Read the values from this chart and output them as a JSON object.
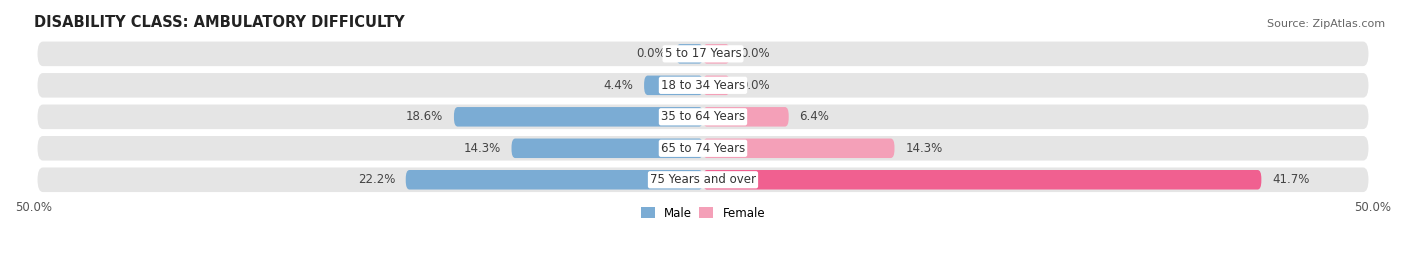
{
  "title": "DISABILITY CLASS: AMBULATORY DIFFICULTY",
  "source": "Source: ZipAtlas.com",
  "categories": [
    "5 to 17 Years",
    "18 to 34 Years",
    "35 to 64 Years",
    "65 to 74 Years",
    "75 Years and over"
  ],
  "male_values": [
    0.0,
    4.4,
    18.6,
    14.3,
    22.2
  ],
  "female_values": [
    0.0,
    0.0,
    6.4,
    14.3,
    41.7
  ],
  "male_color": "#7bacd4",
  "female_color": "#f4a0b8",
  "female_color_75": "#f06090",
  "male_label": "Male",
  "female_label": "Female",
  "xlim": 50.0,
  "bar_height": 0.62,
  "bar_bg_color": "#e5e5e5",
  "title_fontsize": 10.5,
  "source_fontsize": 8,
  "label_fontsize": 8.5,
  "tick_fontsize": 8.5,
  "category_fontsize": 8.5,
  "small_bar_val": 2.0
}
